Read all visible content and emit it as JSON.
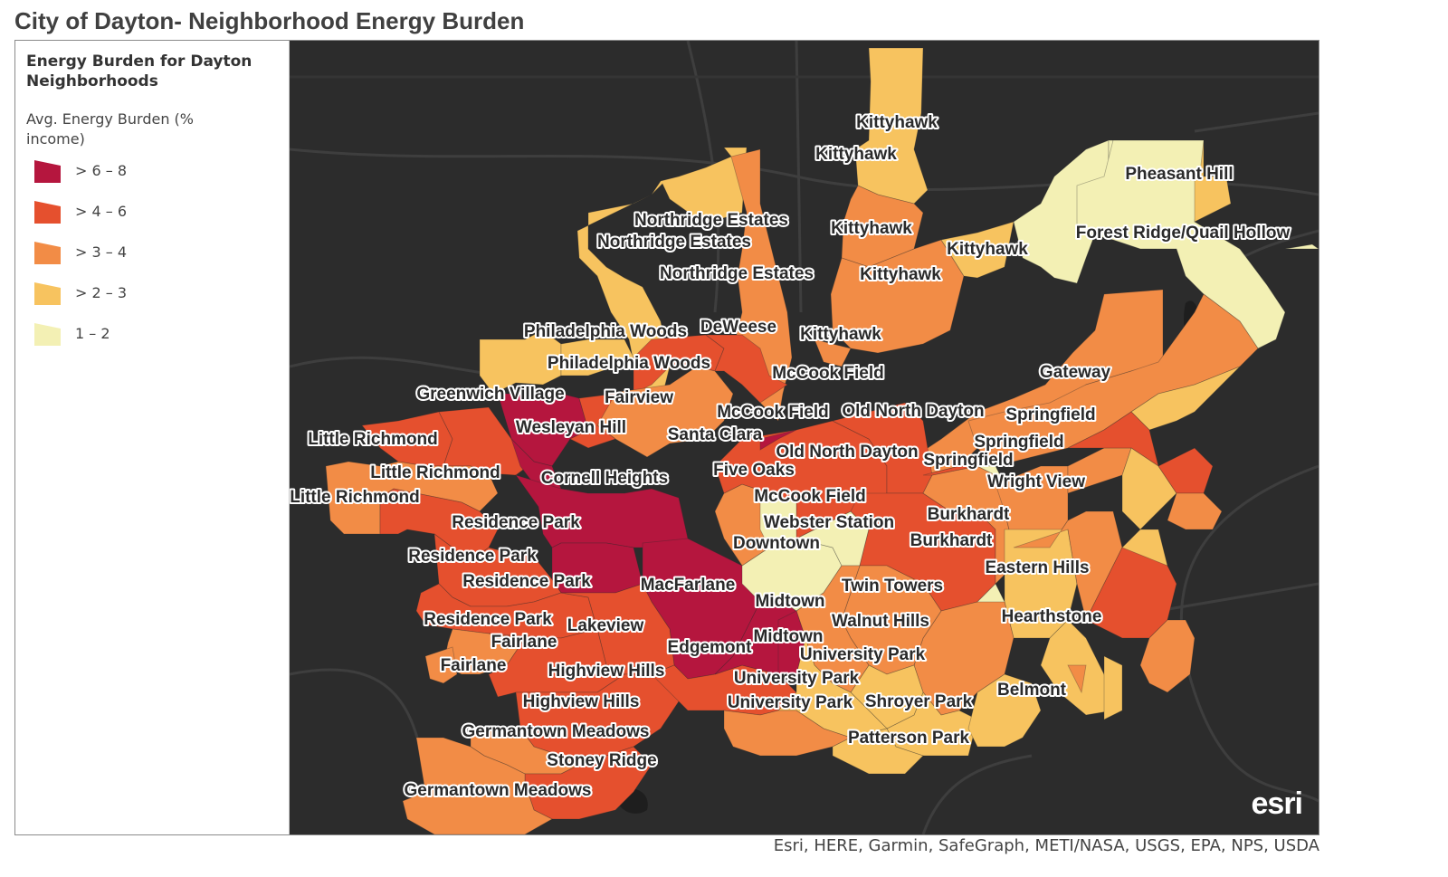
{
  "page_title": "City of Dayton- Neighborhood Energy Burden",
  "legend": {
    "title": "Energy Burden for Dayton Neighborhoods",
    "subtitle": "Avg. Energy Burden (% income)",
    "classes": [
      {
        "label": "> 6 – 8",
        "color": "#b5163e"
      },
      {
        "label": "> 4 – 6",
        "color": "#e5502e"
      },
      {
        "label": "> 3 – 4",
        "color": "#f28c46"
      },
      {
        "label": "> 2 – 3",
        "color": "#f7c35f"
      },
      {
        "label": "1 – 2",
        "color": "#f3f0b4"
      }
    ]
  },
  "map": {
    "background_color": "#2c2c2c",
    "logo": "esri",
    "neighborhood_labels": [
      "Kittyhawk",
      "Kittyhawk",
      "Pheasant Hill",
      "Northridge Estates",
      "Kittyhawk",
      "Forest Ridge/Quail Hollow",
      "Northridge Estates",
      "Kittyhawk",
      "Kittyhawk",
      "Northridge Estates",
      "Philadelphia Woods",
      "DeWeese",
      "Kittyhawk",
      "Philadelphia Woods",
      "Gateway",
      "McCook Field",
      "Greenwich Village",
      "Fairview",
      "McCook Field",
      "Old North Dayton",
      "Springfield",
      "Wesleyan Hill",
      "Santa Clara",
      "Little Richmond",
      "Springfield",
      "Old North Dayton",
      "Springfield",
      "Five Oaks",
      "Little Richmond",
      "Cornell Heights",
      "Wright View",
      "Little Richmond",
      "McCook Field",
      "Burkhardt",
      "Residence Park",
      "Webster Station",
      "Downtown",
      "Burkhardt",
      "Residence Park",
      "Eastern Hills",
      "Residence Park",
      "MacFarlane",
      "Twin Towers",
      "Midtown",
      "Residence Park",
      "Lakeview",
      "Walnut Hills",
      "Hearthstone",
      "Fairlane",
      "Midtown",
      "Edgemont",
      "University Park",
      "Fairlane",
      "Highview Hills",
      "University Park",
      "Belmont",
      "Highview Hills",
      "University Park",
      "Shroyer Park",
      "Germantown Meadows",
      "Patterson Park",
      "Stoney Ridge",
      "Germantown Meadows"
    ]
  },
  "attribution": "Esri, HERE, Garmin, SafeGraph, METI/NASA, USGS, EPA, NPS, USDA"
}
